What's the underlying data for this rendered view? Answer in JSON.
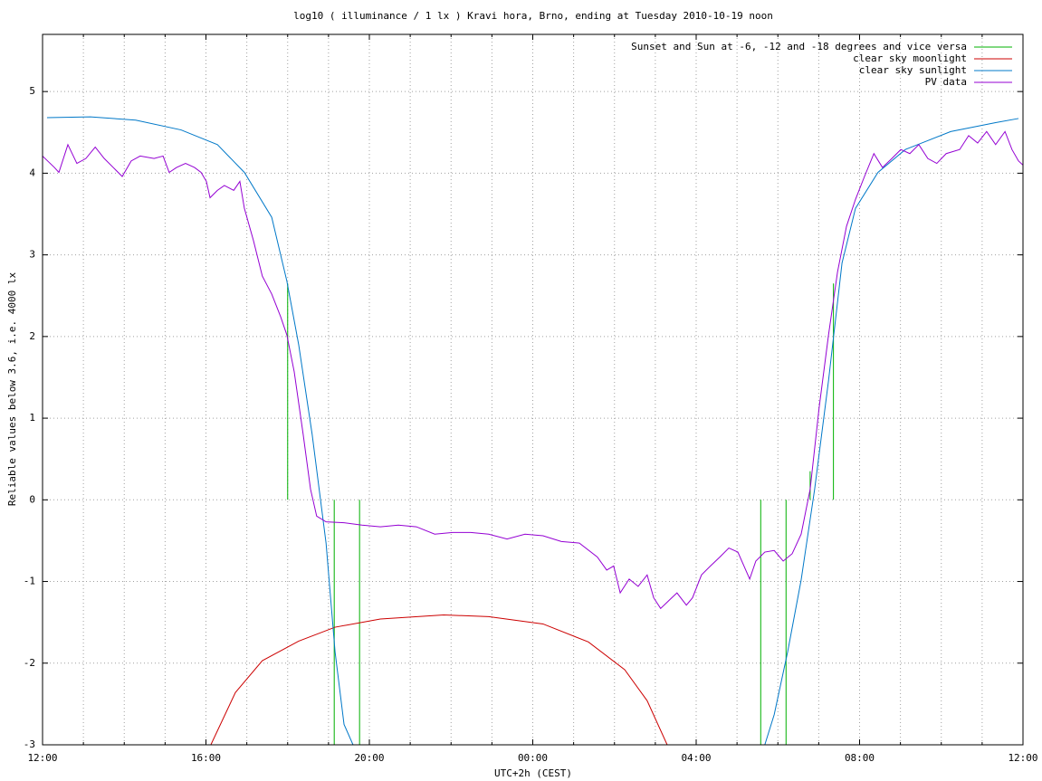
{
  "chart_data": {
    "type": "line",
    "title": "log10 ( illuminance / 1 lx ) Kravi hora, Brno, ending at Tuesday 2010-10-19 noon",
    "xlabel": "UTC+2h (CEST)",
    "ylabel": "Reliable values below 3.6, i.e. 4000 lx",
    "xlim": [
      0,
      24
    ],
    "ylim": [
      -3,
      5.7
    ],
    "xticks": [
      {
        "value": 0,
        "label": "12:00"
      },
      {
        "value": 4,
        "label": "16:00"
      },
      {
        "value": 8,
        "label": "20:00"
      },
      {
        "value": 12,
        "label": "00:00"
      },
      {
        "value": 16,
        "label": "04:00"
      },
      {
        "value": 20,
        "label": "08:00"
      },
      {
        "value": 24,
        "label": "12:00"
      }
    ],
    "x_minor_ticks": [
      1,
      2,
      3,
      5,
      6,
      7,
      9,
      10,
      11,
      13,
      14,
      15,
      17,
      18,
      19,
      21,
      22,
      23
    ],
    "yticks": [
      -3,
      -2,
      -1,
      0,
      1,
      2,
      3,
      4,
      5
    ],
    "grid": true,
    "legend": "top-right",
    "series": [
      {
        "name": "Sunset and Sun at -6, -12 and -18 degrees and vice versa",
        "color": "#00b000",
        "style": "impulse",
        "x": [
          6.0,
          7.14,
          7.76,
          17.58,
          18.2,
          18.79,
          19.36
        ],
        "values": [
          2.65,
          -3,
          -3,
          -3,
          -3,
          0.35,
          2.65
        ]
      },
      {
        "name": "clear sky moonlight",
        "color": "#cc0000",
        "style": "line",
        "x": [
          4.12,
          4.72,
          5.38,
          6.27,
          7.16,
          8.27,
          9.82,
          10.92,
          12.25,
          13.36,
          14.25,
          14.8,
          15.29
        ],
        "values": [
          -3.0,
          -2.36,
          -1.97,
          -1.73,
          -1.56,
          -1.46,
          -1.41,
          -1.43,
          -1.52,
          -1.74,
          -2.08,
          -2.46,
          -3.0
        ]
      },
      {
        "name": "clear sky sunlight",
        "color": "#0078c8",
        "style": "line",
        "x": [
          0.11,
          1.17,
          2.28,
          3.39,
          4.28,
          4.94,
          5.61,
          5.98,
          6.27,
          6.6,
          6.94,
          7.16,
          7.38,
          7.6,
          null,
          17.68,
          17.91,
          18.24,
          18.57,
          18.9,
          19.24,
          19.57,
          19.9,
          20.45,
          21.12,
          22.23,
          23.33,
          23.89
        ],
        "values": [
          4.68,
          4.69,
          4.65,
          4.53,
          4.35,
          4.01,
          3.46,
          2.68,
          1.9,
          0.8,
          -0.53,
          -1.86,
          -2.75,
          -3.0,
          null,
          -3.0,
          -2.63,
          -1.86,
          -0.98,
          0.13,
          1.46,
          2.9,
          3.57,
          4.01,
          4.29,
          4.51,
          4.62,
          4.67
        ]
      },
      {
        "name": "PV data",
        "color": "#9400d3",
        "style": "line",
        "x": [
          0,
          0.29,
          0.4,
          0.62,
          0.84,
          1.06,
          1.29,
          1.51,
          1.73,
          1.95,
          2.17,
          2.39,
          2.73,
          2.95,
          3.1,
          3.28,
          3.5,
          3.72,
          3.88,
          4.01,
          4.1,
          4.28,
          4.45,
          4.68,
          4.83,
          4.94,
          5.16,
          5.38,
          5.61,
          5.83,
          5.98,
          6.16,
          6.38,
          6.56,
          6.71,
          6.94,
          7.38,
          7.82,
          8.27,
          8.71,
          9.15,
          9.6,
          10.04,
          10.48,
          10.92,
          11.37,
          11.81,
          12.25,
          12.7,
          13.14,
          13.58,
          13.81,
          13.98,
          14.14,
          14.36,
          14.58,
          14.8,
          14.96,
          15.13,
          15.36,
          15.53,
          15.76,
          15.91,
          16.13,
          16.35,
          16.58,
          16.8,
          17.02,
          17.17,
          17.31,
          17.46,
          17.68,
          17.91,
          18.13,
          18.35,
          18.57,
          18.79,
          19.01,
          19.24,
          19.46,
          19.68,
          19.9,
          20.12,
          20.35,
          20.56,
          20.79,
          21.01,
          21.23,
          21.45,
          21.67,
          21.89,
          22.12,
          22.45,
          22.67,
          22.89,
          23.11,
          23.33,
          23.56,
          23.73,
          23.89,
          24.0
        ],
        "values": [
          4.21,
          4.07,
          4.01,
          4.35,
          4.12,
          4.18,
          4.32,
          4.18,
          4.07,
          3.96,
          4.15,
          4.21,
          4.18,
          4.21,
          4.01,
          4.07,
          4.12,
          4.07,
          4.01,
          3.9,
          3.7,
          3.79,
          3.85,
          3.79,
          3.9,
          3.57,
          3.18,
          2.74,
          2.52,
          2.24,
          2.02,
          1.57,
          0.8,
          0.13,
          -0.2,
          -0.27,
          -0.28,
          -0.31,
          -0.33,
          -0.31,
          -0.33,
          -0.42,
          -0.4,
          -0.4,
          -0.42,
          -0.48,
          -0.42,
          -0.44,
          -0.51,
          -0.53,
          -0.7,
          -0.86,
          -0.81,
          -1.14,
          -0.97,
          -1.06,
          -0.92,
          -1.2,
          -1.33,
          -1.22,
          -1.14,
          -1.29,
          -1.2,
          -0.92,
          -0.81,
          -0.7,
          -0.59,
          -0.64,
          -0.81,
          -0.97,
          -0.75,
          -0.64,
          -0.62,
          -0.75,
          -0.66,
          -0.42,
          0.13,
          1.13,
          2.02,
          2.79,
          3.35,
          3.68,
          3.96,
          4.24,
          4.07,
          4.18,
          4.29,
          4.24,
          4.35,
          4.18,
          4.12,
          4.24,
          4.29,
          4.46,
          4.37,
          4.51,
          4.35,
          4.51,
          4.29,
          4.15,
          4.1
        ]
      }
    ]
  }
}
